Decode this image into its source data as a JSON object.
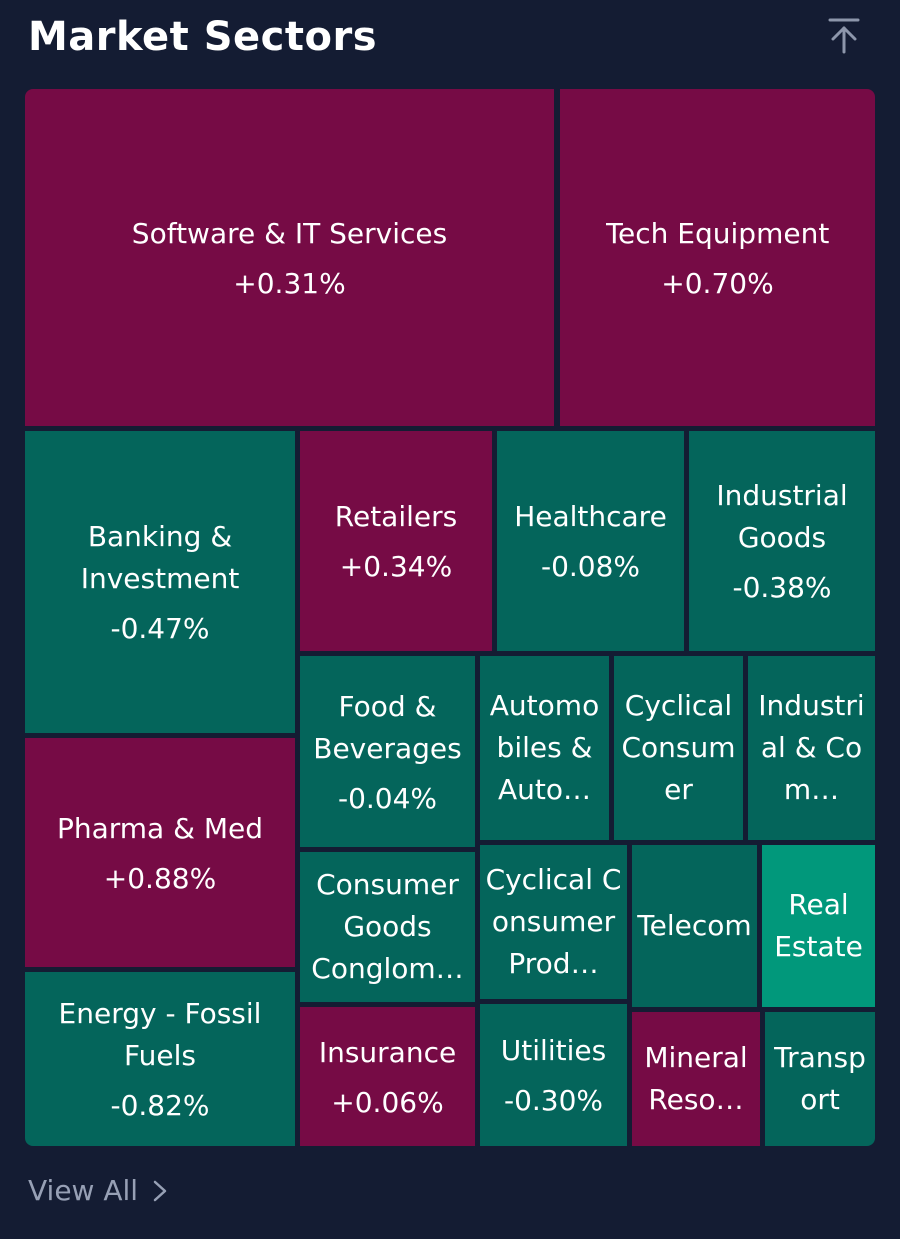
{
  "header": {
    "title": "Market Sectors",
    "scroll_top_icon": "arrow-up-to-top-icon"
  },
  "colors": {
    "background": "#141c33",
    "positive": "#760b45",
    "negative": "#04655b",
    "highlight": "#01987b"
  },
  "sectors": [
    {
      "name": "Software & IT Services",
      "change": "+0.31%"
    },
    {
      "name": "Tech Equipment",
      "change": "+0.70%"
    },
    {
      "name": "Banking & Investment",
      "change": "-0.47%"
    },
    {
      "name": "Retailers",
      "change": "+0.34%"
    },
    {
      "name": "Healthcare",
      "change": "-0.08%"
    },
    {
      "name": "Industrial Goods",
      "change": "-0.38%"
    },
    {
      "name": "Pharma & Med",
      "change": "+0.88%"
    },
    {
      "name": "Food & Beverages",
      "change": "-0.04%"
    },
    {
      "name": "Automobiles & Auto…",
      "change": ""
    },
    {
      "name": "Cyclical Consumer",
      "change": ""
    },
    {
      "name": "Industrial & Com…",
      "change": ""
    },
    {
      "name": "Consumer Goods Conglom…",
      "change": ""
    },
    {
      "name": "Cyclical Consumer Prod…",
      "change": ""
    },
    {
      "name": "Telecom",
      "change": ""
    },
    {
      "name": "Real Estate",
      "change": ""
    },
    {
      "name": "Energy - Fossil Fuels",
      "change": "-0.82%"
    },
    {
      "name": "Insurance",
      "change": "+0.06%"
    },
    {
      "name": "Utilities",
      "change": "-0.30%"
    },
    {
      "name": "Mineral Reso…",
      "change": ""
    },
    {
      "name": "Transport",
      "change": ""
    }
  ],
  "footer": {
    "view_all_label": "View All",
    "chevron_icon": "chevron-right-icon"
  }
}
